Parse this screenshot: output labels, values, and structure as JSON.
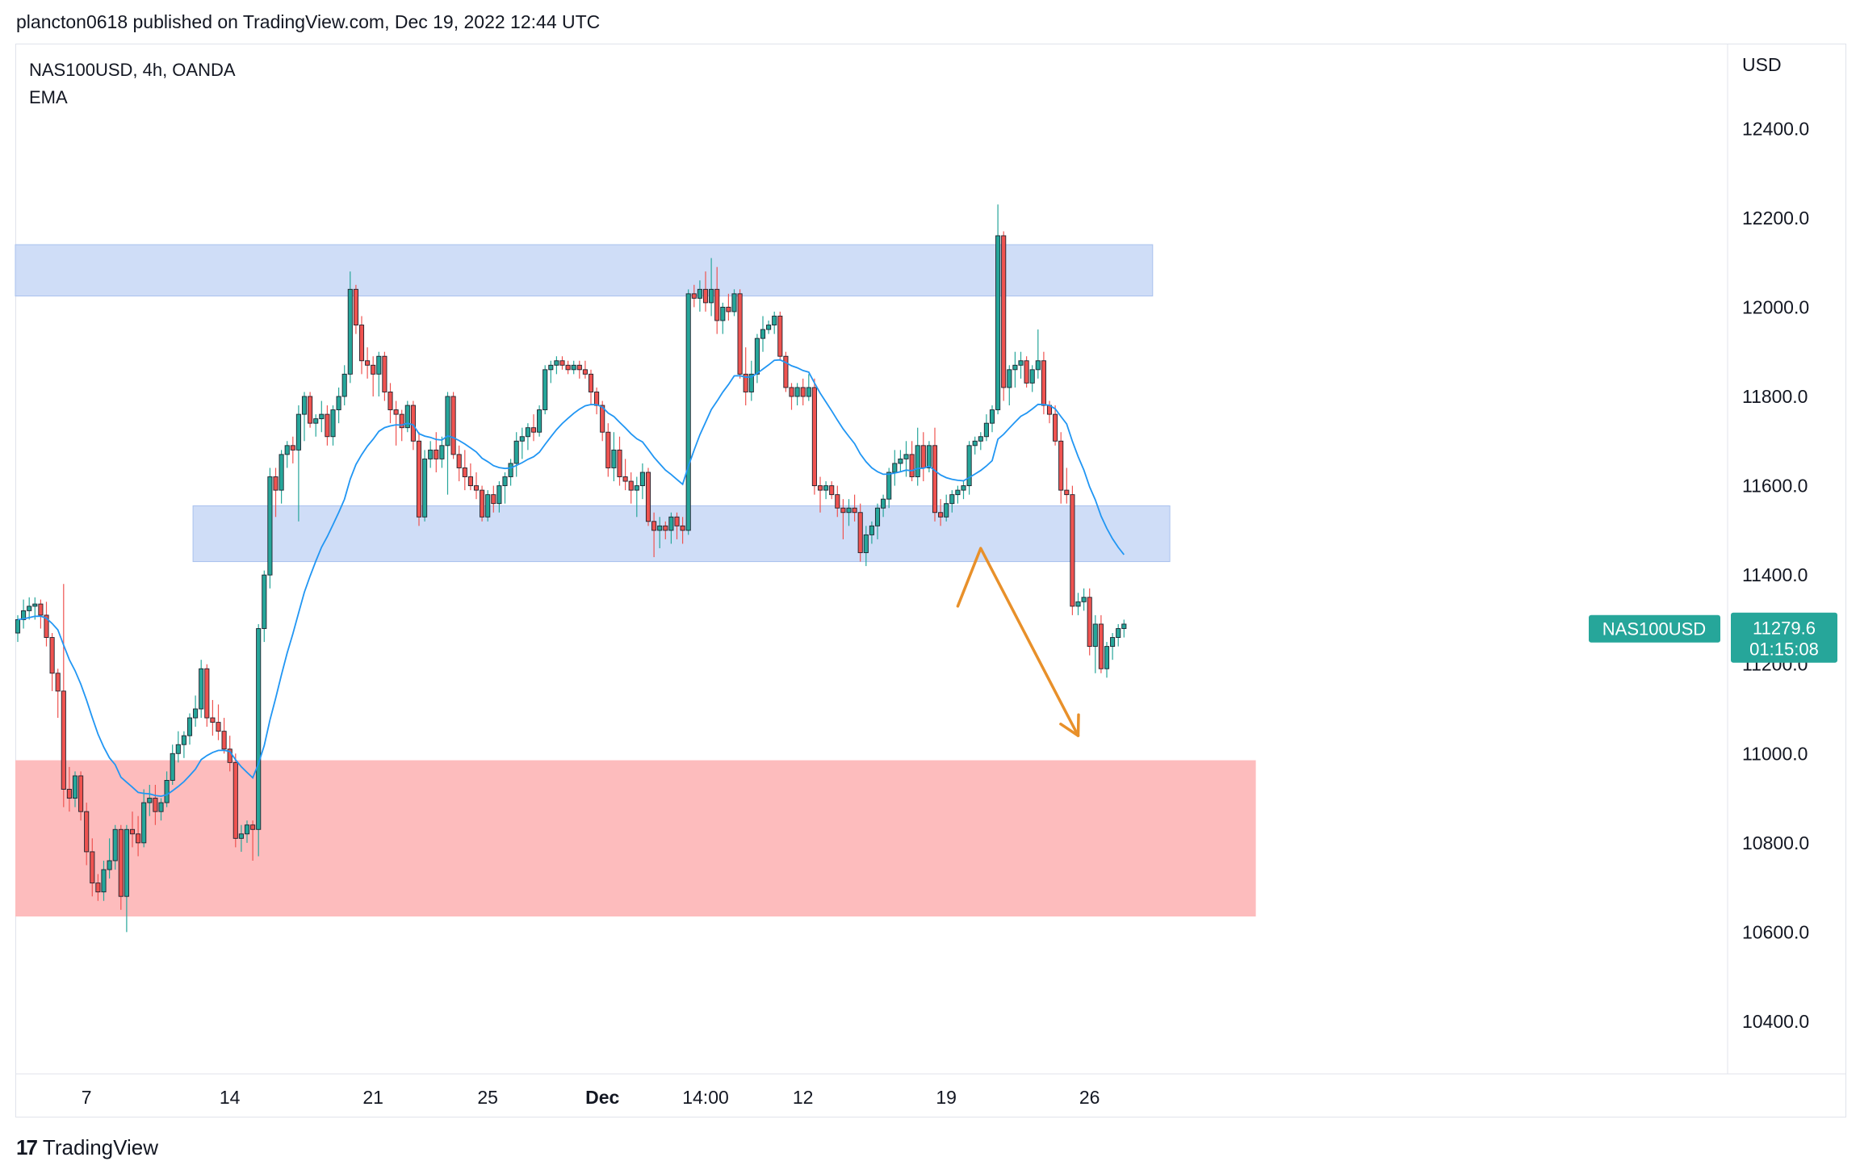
{
  "header": {
    "published_line": "plancton0618 published on TradingView.com, Dec 19, 2022 12:44 UTC"
  },
  "legend": {
    "symbol_line": "NAS100USD, 4h, OANDA",
    "indicator": "EMA"
  },
  "footer": {
    "logo_mark": "17",
    "brand": "TradingView"
  },
  "chart_data": {
    "type": "candlestick",
    "symbol": "NAS100USD",
    "timeframe": "4h",
    "exchange": "OANDA",
    "currency_label": "USD",
    "ylim": [
      10320,
      12540
    ],
    "y_ticks": [
      {
        "value": 12400,
        "label": "12400.0"
      },
      {
        "value": 12200,
        "label": "12200.0"
      },
      {
        "value": 12000,
        "label": "12000.0"
      },
      {
        "value": 11800,
        "label": "11800.0"
      },
      {
        "value": 11600,
        "label": "11600.0"
      },
      {
        "value": 11400,
        "label": "11400.0"
      },
      {
        "value": 11200,
        "label": "11200.0"
      },
      {
        "value": 11000,
        "label": "11000.0"
      },
      {
        "value": 10800,
        "label": "10800.0"
      },
      {
        "value": 10600,
        "label": "10600.0"
      },
      {
        "value": 10400,
        "label": "10400.0"
      }
    ],
    "x_ticks": [
      {
        "index": 12,
        "label": "7",
        "bold": false
      },
      {
        "index": 37,
        "label": "14",
        "bold": false
      },
      {
        "index": 62,
        "label": "21",
        "bold": false
      },
      {
        "index": 82,
        "label": "25",
        "bold": false
      },
      {
        "index": 102,
        "label": "Dec",
        "bold": true
      },
      {
        "index": 120,
        "label": "14:00",
        "bold": false
      },
      {
        "index": 137,
        "label": "12",
        "bold": false
      },
      {
        "index": 162,
        "label": "19",
        "bold": false
      },
      {
        "index": 187,
        "label": "26",
        "bold": false
      }
    ],
    "last_price": {
      "label": "NAS100USD",
      "value": "11279.6",
      "countdown": "01:15:08",
      "price": 11279.6
    },
    "colors": {
      "up": "#26a69a",
      "down": "#ef5350",
      "ema": "#2196f3",
      "zone_blue": "#cfddf7",
      "zone_blue_border": "#a9c1ee",
      "zone_red": "#fdbcbd",
      "arrow": "#e8902a",
      "badge": "#26a69a"
    },
    "zones": [
      {
        "kind": "resistance",
        "top": 12140,
        "bottom": 12025,
        "start_index": 0,
        "end_index": 198
      },
      {
        "kind": "support",
        "top": 11555,
        "bottom": 11430,
        "start_index": 31,
        "end_index": 201
      },
      {
        "kind": "demand",
        "top": 10985,
        "bottom": 10635,
        "start_index": 0,
        "end_index": 216
      }
    ],
    "projection_arrow": [
      {
        "index": 164,
        "price": 11330
      },
      {
        "index": 168,
        "price": 11460
      },
      {
        "index": 185,
        "price": 11040
      }
    ],
    "ohlc": [
      [
        11270,
        11310,
        11250,
        11300
      ],
      [
        11300,
        11345,
        11280,
        11320
      ],
      [
        11320,
        11350,
        11300,
        11330
      ],
      [
        11330,
        11350,
        11300,
        11335
      ],
      [
        11335,
        11345,
        11280,
        11310
      ],
      [
        11310,
        11340,
        11240,
        11260
      ],
      [
        11260,
        11270,
        11140,
        11180
      ],
      [
        11180,
        11190,
        11080,
        11140
      ],
      [
        11140,
        11380,
        10880,
        10920
      ],
      [
        10920,
        10970,
        10870,
        10900
      ],
      [
        10900,
        10960,
        10880,
        10950
      ],
      [
        10950,
        10960,
        10850,
        10870
      ],
      [
        10870,
        10890,
        10750,
        10780
      ],
      [
        10780,
        10810,
        10680,
        10710
      ],
      [
        10710,
        10730,
        10670,
        10690
      ],
      [
        10690,
        10760,
        10670,
        10740
      ],
      [
        10740,
        10810,
        10720,
        10760
      ],
      [
        10760,
        10840,
        10740,
        10830
      ],
      [
        10830,
        10840,
        10650,
        10680
      ],
      [
        10680,
        10840,
        10600,
        10830
      ],
      [
        10830,
        10870,
        10790,
        10820
      ],
      [
        10820,
        10860,
        10770,
        10800
      ],
      [
        10800,
        10920,
        10790,
        10890
      ],
      [
        10890,
        10930,
        10860,
        10900
      ],
      [
        10900,
        10930,
        10840,
        10870
      ],
      [
        10870,
        10900,
        10850,
        10890
      ],
      [
        10890,
        10960,
        10880,
        10940
      ],
      [
        10940,
        11020,
        10930,
        11000
      ],
      [
        11000,
        11050,
        10980,
        11020
      ],
      [
        11020,
        11050,
        10990,
        11040
      ],
      [
        11040,
        11090,
        11020,
        11080
      ],
      [
        11080,
        11130,
        11060,
        11100
      ],
      [
        11100,
        11210,
        11080,
        11190
      ],
      [
        11190,
        11200,
        11060,
        11080
      ],
      [
        11080,
        11120,
        11040,
        11070
      ],
      [
        11070,
        11110,
        11030,
        11050
      ],
      [
        11050,
        11080,
        11000,
        11010
      ],
      [
        11010,
        11040,
        10960,
        10980
      ],
      [
        10980,
        11000,
        10790,
        10810
      ],
      [
        10810,
        10840,
        10780,
        10820
      ],
      [
        10820,
        10850,
        10800,
        10840
      ],
      [
        10840,
        10850,
        10760,
        10830
      ],
      [
        10830,
        11290,
        10770,
        11280
      ],
      [
        11280,
        11410,
        11250,
        11400
      ],
      [
        11400,
        11640,
        11370,
        11620
      ],
      [
        11620,
        11640,
        11530,
        11590
      ],
      [
        11590,
        11680,
        11560,
        11670
      ],
      [
        11670,
        11700,
        11640,
        11690
      ],
      [
        11690,
        11710,
        11650,
        11680
      ],
      [
        11680,
        11780,
        11520,
        11760
      ],
      [
        11760,
        11810,
        11700,
        11800
      ],
      [
        11800,
        11810,
        11730,
        11740
      ],
      [
        11740,
        11760,
        11710,
        11750
      ],
      [
        11750,
        11790,
        11720,
        11760
      ],
      [
        11760,
        11780,
        11690,
        11710
      ],
      [
        11710,
        11780,
        11690,
        11770
      ],
      [
        11770,
        11820,
        11740,
        11800
      ],
      [
        11800,
        11870,
        11780,
        11850
      ],
      [
        11850,
        12080,
        11830,
        12040
      ],
      [
        12040,
        12050,
        11940,
        11960
      ],
      [
        11960,
        11980,
        11850,
        11880
      ],
      [
        11880,
        11910,
        11840,
        11870
      ],
      [
        11870,
        11890,
        11800,
        11850
      ],
      [
        11850,
        11900,
        11800,
        11890
      ],
      [
        11890,
        11900,
        11790,
        11810
      ],
      [
        11810,
        11830,
        11740,
        11770
      ],
      [
        11770,
        11790,
        11690,
        11760
      ],
      [
        11760,
        11770,
        11700,
        11730
      ],
      [
        11730,
        11790,
        11720,
        11780
      ],
      [
        11780,
        11790,
        11680,
        11700
      ],
      [
        11700,
        11720,
        11510,
        11530
      ],
      [
        11530,
        11680,
        11520,
        11660
      ],
      [
        11660,
        11700,
        11640,
        11680
      ],
      [
        11680,
        11720,
        11630,
        11660
      ],
      [
        11660,
        11710,
        11640,
        11690
      ],
      [
        11690,
        11810,
        11580,
        11800
      ],
      [
        11800,
        11810,
        11660,
        11670
      ],
      [
        11670,
        11690,
        11610,
        11640
      ],
      [
        11640,
        11680,
        11590,
        11620
      ],
      [
        11620,
        11650,
        11590,
        11600
      ],
      [
        11600,
        11630,
        11570,
        11590
      ],
      [
        11590,
        11600,
        11520,
        11530
      ],
      [
        11530,
        11590,
        11520,
        11580
      ],
      [
        11580,
        11600,
        11540,
        11560
      ],
      [
        11560,
        11610,
        11540,
        11600
      ],
      [
        11600,
        11630,
        11560,
        11620
      ],
      [
        11620,
        11660,
        11600,
        11650
      ],
      [
        11650,
        11720,
        11620,
        11700
      ],
      [
        11700,
        11730,
        11660,
        11710
      ],
      [
        11710,
        11740,
        11680,
        11730
      ],
      [
        11730,
        11760,
        11700,
        11720
      ],
      [
        11720,
        11780,
        11710,
        11770
      ],
      [
        11770,
        11870,
        11760,
        11860
      ],
      [
        11860,
        11880,
        11830,
        11870
      ],
      [
        11870,
        11890,
        11850,
        11880
      ],
      [
        11880,
        11890,
        11860,
        11870
      ],
      [
        11870,
        11880,
        11850,
        11860
      ],
      [
        11860,
        11880,
        11850,
        11870
      ],
      [
        11870,
        11880,
        11840,
        11860
      ],
      [
        11860,
        11880,
        11840,
        11850
      ],
      [
        11850,
        11860,
        11780,
        11810
      ],
      [
        11810,
        11820,
        11760,
        11780
      ],
      [
        11780,
        11790,
        11700,
        11720
      ],
      [
        11720,
        11740,
        11620,
        11640
      ],
      [
        11640,
        11720,
        11610,
        11680
      ],
      [
        11680,
        11710,
        11600,
        11620
      ],
      [
        11620,
        11660,
        11590,
        11610
      ],
      [
        11610,
        11630,
        11560,
        11590
      ],
      [
        11590,
        11620,
        11530,
        11600
      ],
      [
        11600,
        11650,
        11570,
        11630
      ],
      [
        11630,
        11640,
        11510,
        11520
      ],
      [
        11520,
        11540,
        11440,
        11500
      ],
      [
        11500,
        11530,
        11460,
        11510
      ],
      [
        11510,
        11520,
        11480,
        11500
      ],
      [
        11500,
        11540,
        11470,
        11530
      ],
      [
        11530,
        11540,
        11480,
        11510
      ],
      [
        11510,
        11530,
        11470,
        11500
      ],
      [
        11500,
        12040,
        11490,
        12030
      ],
      [
        12030,
        12050,
        12000,
        12020
      ],
      [
        12020,
        12060,
        11990,
        12040
      ],
      [
        12040,
        12080,
        11990,
        12010
      ],
      [
        12010,
        12110,
        11980,
        12040
      ],
      [
        12040,
        12090,
        11940,
        11970
      ],
      [
        11970,
        12010,
        11940,
        12000
      ],
      [
        12000,
        12030,
        11970,
        11990
      ],
      [
        11990,
        12040,
        11980,
        12030
      ],
      [
        12030,
        12040,
        11840,
        11850
      ],
      [
        11850,
        11910,
        11780,
        11810
      ],
      [
        11810,
        11880,
        11790,
        11850
      ],
      [
        11850,
        11940,
        11830,
        11930
      ],
      [
        11930,
        11980,
        11900,
        11950
      ],
      [
        11950,
        11970,
        11940,
        11960
      ],
      [
        11960,
        11990,
        11940,
        11980
      ],
      [
        11980,
        11990,
        11880,
        11890
      ],
      [
        11890,
        11900,
        11810,
        11820
      ],
      [
        11820,
        11830,
        11770,
        11800
      ],
      [
        11800,
        11830,
        11780,
        11820
      ],
      [
        11820,
        11840,
        11780,
        11800
      ],
      [
        11800,
        11850,
        11790,
        11820
      ],
      [
        11820,
        11840,
        11580,
        11600
      ],
      [
        11600,
        11620,
        11540,
        11590
      ],
      [
        11590,
        11610,
        11570,
        11600
      ],
      [
        11600,
        11610,
        11570,
        11580
      ],
      [
        11580,
        11600,
        11530,
        11550
      ],
      [
        11550,
        11570,
        11480,
        11540
      ],
      [
        11540,
        11570,
        11510,
        11550
      ],
      [
        11550,
        11580,
        11520,
        11540
      ],
      [
        11540,
        11560,
        11430,
        11450
      ],
      [
        11450,
        11510,
        11420,
        11490
      ],
      [
        11490,
        11520,
        11470,
        11510
      ],
      [
        11510,
        11560,
        11480,
        11550
      ],
      [
        11550,
        11580,
        11530,
        11570
      ],
      [
        11570,
        11640,
        11550,
        11630
      ],
      [
        11630,
        11680,
        11600,
        11650
      ],
      [
        11650,
        11680,
        11630,
        11660
      ],
      [
        11660,
        11700,
        11620,
        11670
      ],
      [
        11670,
        11700,
        11610,
        11620
      ],
      [
        11620,
        11730,
        11600,
        11690
      ],
      [
        11690,
        11720,
        11610,
        11640
      ],
      [
        11640,
        11700,
        11630,
        11690
      ],
      [
        11690,
        11730,
        11520,
        11540
      ],
      [
        11540,
        11570,
        11510,
        11530
      ],
      [
        11530,
        11580,
        11520,
        11560
      ],
      [
        11560,
        11590,
        11540,
        11580
      ],
      [
        11580,
        11600,
        11560,
        11590
      ],
      [
        11590,
        11610,
        11570,
        11600
      ],
      [
        11600,
        11700,
        11580,
        11690
      ],
      [
        11690,
        11710,
        11670,
        11700
      ],
      [
        11700,
        11720,
        11680,
        11710
      ],
      [
        11710,
        11760,
        11700,
        11740
      ],
      [
        11740,
        11780,
        11720,
        11770
      ],
      [
        11770,
        12230,
        11760,
        12160
      ],
      [
        12160,
        12170,
        11790,
        11820
      ],
      [
        11820,
        11870,
        11780,
        11860
      ],
      [
        11860,
        11900,
        11820,
        11870
      ],
      [
        11870,
        11900,
        11840,
        11880
      ],
      [
        11880,
        11890,
        11820,
        11830
      ],
      [
        11830,
        11870,
        11810,
        11860
      ],
      [
        11860,
        11950,
        11840,
        11880
      ],
      [
        11880,
        11900,
        11760,
        11780
      ],
      [
        11780,
        11790,
        11740,
        11760
      ],
      [
        11760,
        11780,
        11690,
        11700
      ],
      [
        11700,
        11720,
        11560,
        11590
      ],
      [
        11590,
        11640,
        11560,
        11580
      ],
      [
        11580,
        11600,
        11310,
        11330
      ],
      [
        11330,
        11360,
        11310,
        11340
      ],
      [
        11340,
        11370,
        11320,
        11350
      ],
      [
        11350,
        11370,
        11220,
        11240
      ],
      [
        11240,
        11310,
        11180,
        11290
      ],
      [
        11290,
        11310,
        11180,
        11190
      ],
      [
        11190,
        11250,
        11170,
        11240
      ],
      [
        11240,
        11270,
        11210,
        11260
      ],
      [
        11260,
        11290,
        11240,
        11280
      ],
      [
        11280,
        11300,
        11260,
        11290
      ]
    ]
  }
}
